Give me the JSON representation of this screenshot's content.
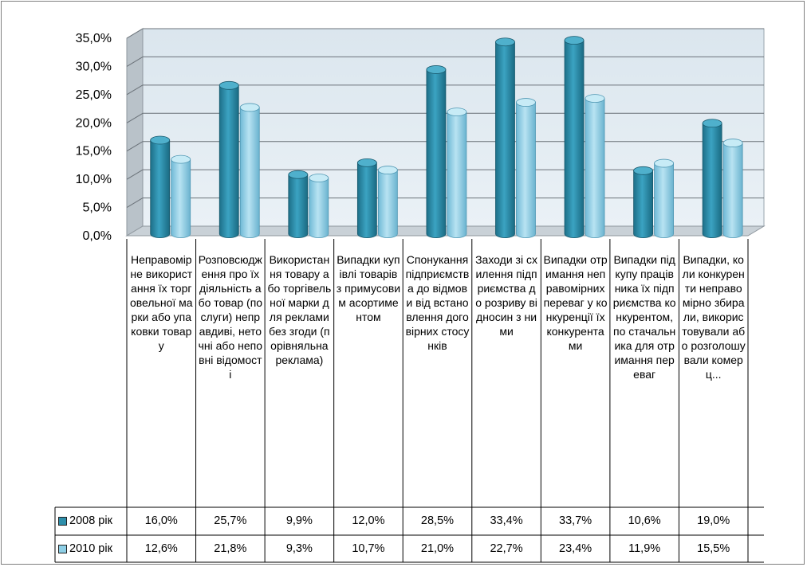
{
  "chart_data": {
    "type": "bar",
    "categories": [
      "Неправомірне використання їх торговельної марки або упаковки товару",
      "Розповсюдження про їх діяльність або товар (послуги) неправдиві, неточні або неповні відомості",
      "Використання товару або торгівельної марки для реклами без згоди (порівняльна реклама)",
      "Випадки купівлі товарів з примусовим асортиментом",
      "Спонукання підприємства до відмови від встановлення договірних стосунків",
      "Заходи зі схилення підприємства до розриву відносин з ними",
      "Випадки отримання неправомірних переваг у конкуренції їх конкурентами",
      "Випадки підкупу працівника їх підприємства конкурентом, по стачальника для отримання переваг",
      "Випадки, коли конкуренти неправомірно збирали, використовували або розголошували комерц..."
    ],
    "series": [
      {
        "name": "2008 рік",
        "color": "#2e8fab",
        "values": [
          16.0,
          25.7,
          9.9,
          12.0,
          28.5,
          33.4,
          33.7,
          10.6,
          19.0
        ],
        "labels": [
          "16,0%",
          "25,7%",
          "9,9%",
          "12,0%",
          "28,5%",
          "33,4%",
          "33,7%",
          "10,6%",
          "19,0%"
        ]
      },
      {
        "name": "2010 рік",
        "color": "#8ecfe6",
        "values": [
          12.6,
          21.8,
          9.3,
          10.7,
          21.0,
          22.7,
          23.4,
          11.9,
          15.5
        ],
        "labels": [
          "12,6%",
          "21,8%",
          "9,3%",
          "10,7%",
          "21,0%",
          "22,7%",
          "23,4%",
          "11,9%",
          "15,5%"
        ]
      }
    ],
    "yticks": [
      "0,0%",
      "5,0%",
      "10,0%",
      "15,0%",
      "20,0%",
      "25,0%",
      "30,0%",
      "35,0%"
    ],
    "ylim": [
      0,
      35
    ],
    "grid": true,
    "legend": "data-table"
  }
}
